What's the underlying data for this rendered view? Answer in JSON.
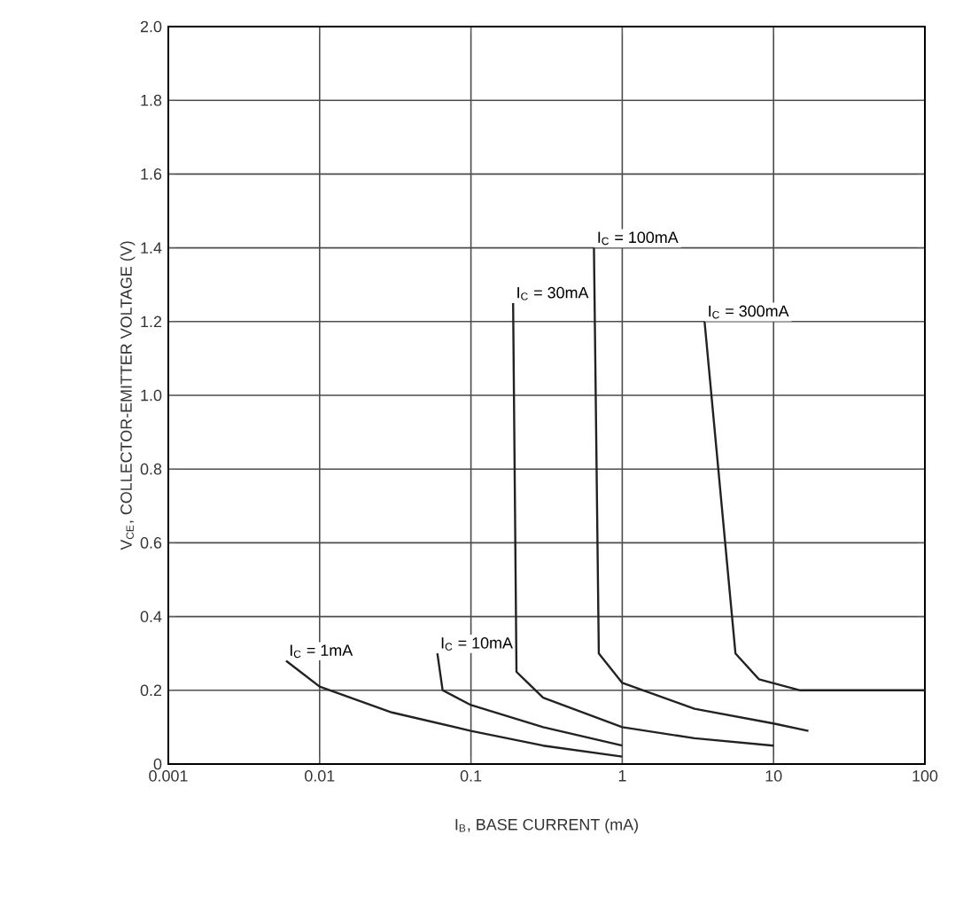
{
  "chart_data": {
    "type": "line",
    "xlabel": "I$_{B}$, BASE CURRENT (mA)",
    "ylabel": "V$_{CE}$, COLLECTOR-EMITTER VOLTAGE (V)",
    "log": "x",
    "grid": true,
    "marker": "none",
    "line_style": "solid",
    "xlim": [
      0.001,
      100
    ],
    "xticks": [
      0.001,
      0.01,
      0.1,
      1,
      10,
      100
    ],
    "ylim": [
      0,
      2
    ],
    "yticks": [
      0,
      0.2,
      0.4,
      0.6,
      0.8,
      {
        "value": 1,
        "label": "1.0"
      },
      1.2,
      1.4,
      1.6,
      1.8,
      {
        "value": 2,
        "label": "2.0"
      }
    ],
    "series": [
      {
        "name": "I$_{C}$ = 1mA",
        "color": "#222222",
        "x": [
          0.006,
          0.01,
          0.03,
          0.1,
          0.3,
          1
        ],
        "values": [
          0.28,
          0.21,
          0.14,
          0.09,
          0.05,
          0.02
        ]
      },
      {
        "name": "I$_{C}$ = 10mA",
        "color": "#222222",
        "x": [
          0.06,
          0.065,
          0.1,
          0.3,
          1
        ],
        "values": [
          0.3,
          0.2,
          0.16,
          0.1,
          0.05
        ]
      },
      {
        "name": "I$_{C}$ = 30mA",
        "color": "#222222",
        "x": [
          0.19,
          0.2,
          0.3,
          1,
          3,
          10
        ],
        "values": [
          1.25,
          0.25,
          0.18,
          0.1,
          0.07,
          0.05
        ]
      },
      {
        "name": "I$_{C}$ = 100mA",
        "color": "#222222",
        "x": [
          0.65,
          0.7,
          1,
          3,
          10,
          17
        ],
        "values": [
          1.4,
          0.3,
          0.22,
          0.15,
          0.11,
          0.09
        ]
      },
      {
        "name": "I$_{C}$ = 300mA",
        "color": "#222222",
        "x": [
          3.5,
          5.6,
          8,
          15,
          30,
          100
        ],
        "values": [
          1.2,
          0.3,
          0.23,
          0.2,
          0.2,
          0.2
        ]
      }
    ]
  }
}
